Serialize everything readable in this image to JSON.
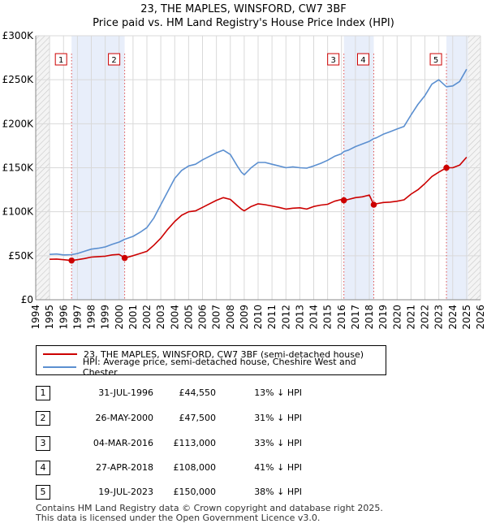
{
  "chart_data": {
    "type": "line",
    "title": "23, THE MAPLES, WINSFORD, CW7 3BF",
    "subtitle": "Price paid vs. HM Land Registry's House Price Index (HPI)",
    "xlim": [
      1994,
      2026
    ],
    "ylim": [
      0,
      300000
    ],
    "x_ticks": [
      "1994",
      "1995",
      "1996",
      "1997",
      "1998",
      "1999",
      "2000",
      "2001",
      "2002",
      "2003",
      "2004",
      "2005",
      "2006",
      "2007",
      "2008",
      "2009",
      "2010",
      "2011",
      "2012",
      "2013",
      "2014",
      "2015",
      "2016",
      "2017",
      "2018",
      "2019",
      "2020",
      "2021",
      "2022",
      "2023",
      "2024",
      "2025",
      "2026"
    ],
    "y_ticks": [
      {
        "value": 0,
        "label": "£0"
      },
      {
        "value": 50000,
        "label": "£50K"
      },
      {
        "value": 100000,
        "label": "£100K"
      },
      {
        "value": 150000,
        "label": "£150K"
      },
      {
        "value": 200000,
        "label": "£200K"
      },
      {
        "value": 250000,
        "label": "£250K"
      },
      {
        "value": 300000,
        "label": "£300K"
      }
    ],
    "series": [
      {
        "name": "23, THE MAPLES, WINSFORD, CW7 3BF (semi-detached house)",
        "color": "#cc0000",
        "points": [
          [
            1995.0,
            46000
          ],
          [
            1995.5,
            46200
          ],
          [
            1996.0,
            45500
          ],
          [
            1996.58,
            44550
          ],
          [
            1997.0,
            45500
          ],
          [
            1997.5,
            46800
          ],
          [
            1998.0,
            48500
          ],
          [
            1998.5,
            49000
          ],
          [
            1999.0,
            49500
          ],
          [
            1999.5,
            51000
          ],
          [
            2000.0,
            51500
          ],
          [
            2000.4,
            47500
          ],
          [
            2000.5,
            47800
          ],
          [
            2001.0,
            50000
          ],
          [
            2001.5,
            52500
          ],
          [
            2002.0,
            55000
          ],
          [
            2002.5,
            62000
          ],
          [
            2003.0,
            70000
          ],
          [
            2003.5,
            80000
          ],
          [
            2004.0,
            89000
          ],
          [
            2004.5,
            96000
          ],
          [
            2005.0,
            100000
          ],
          [
            2005.5,
            101000
          ],
          [
            2006.0,
            105000
          ],
          [
            2006.5,
            109000
          ],
          [
            2007.0,
            113000
          ],
          [
            2007.5,
            116000
          ],
          [
            2008.0,
            114000
          ],
          [
            2008.5,
            107000
          ],
          [
            2008.8,
            103000
          ],
          [
            2009.0,
            101000
          ],
          [
            2009.5,
            106000
          ],
          [
            2010.0,
            109000
          ],
          [
            2010.5,
            108000
          ],
          [
            2011.0,
            106500
          ],
          [
            2011.5,
            105000
          ],
          [
            2012.0,
            103000
          ],
          [
            2012.5,
            104000
          ],
          [
            2013.0,
            104500
          ],
          [
            2013.5,
            103000
          ],
          [
            2014.0,
            106000
          ],
          [
            2014.5,
            107500
          ],
          [
            2015.0,
            108500
          ],
          [
            2015.5,
            112000
          ],
          [
            2016.0,
            114000
          ],
          [
            2016.17,
            113000
          ],
          [
            2016.5,
            114000
          ],
          [
            2017.0,
            116000
          ],
          [
            2017.5,
            117000
          ],
          [
            2018.0,
            119000
          ],
          [
            2018.32,
            108000
          ],
          [
            2018.5,
            109000
          ],
          [
            2019.0,
            110500
          ],
          [
            2019.5,
            111000
          ],
          [
            2020.0,
            112000
          ],
          [
            2020.5,
            113500
          ],
          [
            2021.0,
            120000
          ],
          [
            2021.5,
            125000
          ],
          [
            2022.0,
            132000
          ],
          [
            2022.5,
            140000
          ],
          [
            2023.0,
            145000
          ],
          [
            2023.55,
            150000
          ],
          [
            2024.0,
            150000
          ],
          [
            2024.5,
            153000
          ],
          [
            2025.0,
            162000
          ]
        ]
      },
      {
        "name": "HPI: Average price, semi-detached house, Cheshire West and Chester",
        "color": "#5b8fd0",
        "points": [
          [
            1995.0,
            51500
          ],
          [
            1995.5,
            52000
          ],
          [
            1996.0,
            51000
          ],
          [
            1996.58,
            51200
          ],
          [
            1997.0,
            52500
          ],
          [
            1997.5,
            55000
          ],
          [
            1998.0,
            57500
          ],
          [
            1998.5,
            58500
          ],
          [
            1999.0,
            60000
          ],
          [
            1999.5,
            63000
          ],
          [
            2000.0,
            65500
          ],
          [
            2000.4,
            68700
          ],
          [
            2001.0,
            72000
          ],
          [
            2001.5,
            76500
          ],
          [
            2002.0,
            82000
          ],
          [
            2002.5,
            93000
          ],
          [
            2003.0,
            108000
          ],
          [
            2003.5,
            123000
          ],
          [
            2004.0,
            138000
          ],
          [
            2004.5,
            147000
          ],
          [
            2005.0,
            152000
          ],
          [
            2005.5,
            154000
          ],
          [
            2006.0,
            159000
          ],
          [
            2006.5,
            163000
          ],
          [
            2007.0,
            167000
          ],
          [
            2007.5,
            170000
          ],
          [
            2008.0,
            165000
          ],
          [
            2008.5,
            152000
          ],
          [
            2008.8,
            145000
          ],
          [
            2009.0,
            142000
          ],
          [
            2009.5,
            150000
          ],
          [
            2010.0,
            156000
          ],
          [
            2010.5,
            156000
          ],
          [
            2011.0,
            154000
          ],
          [
            2011.5,
            152000
          ],
          [
            2012.0,
            150000
          ],
          [
            2012.5,
            151000
          ],
          [
            2013.0,
            150000
          ],
          [
            2013.5,
            149500
          ],
          [
            2014.0,
            152000
          ],
          [
            2014.5,
            155000
          ],
          [
            2015.0,
            158500
          ],
          [
            2015.5,
            163000
          ],
          [
            2016.0,
            166000
          ],
          [
            2016.17,
            168500
          ],
          [
            2016.5,
            170000
          ],
          [
            2017.0,
            174000
          ],
          [
            2017.5,
            177000
          ],
          [
            2018.0,
            180000
          ],
          [
            2018.32,
            183100
          ],
          [
            2018.5,
            184000
          ],
          [
            2019.0,
            188000
          ],
          [
            2019.5,
            191000
          ],
          [
            2020.0,
            194000
          ],
          [
            2020.5,
            197000
          ],
          [
            2021.0,
            210000
          ],
          [
            2021.5,
            222000
          ],
          [
            2022.0,
            232000
          ],
          [
            2022.5,
            245000
          ],
          [
            2023.0,
            250000
          ],
          [
            2023.55,
            242000
          ],
          [
            2024.0,
            243000
          ],
          [
            2024.5,
            248000
          ],
          [
            2025.0,
            262000
          ]
        ]
      }
    ],
    "sales": [
      {
        "label": "1",
        "x": 1996.58,
        "price": 44550
      },
      {
        "label": "2",
        "x": 2000.4,
        "price": 47500
      },
      {
        "label": "3",
        "x": 2016.17,
        "price": 113000
      },
      {
        "label": "4",
        "x": 2018.32,
        "price": 108000
      },
      {
        "label": "5",
        "x": 2023.55,
        "price": 150000
      }
    ],
    "shaded_spans": [
      [
        1996.58,
        2000.4
      ],
      [
        2016.17,
        2018.32
      ],
      [
        2023.55,
        2025.1
      ]
    ],
    "hatched_before": 1995,
    "hatched_after": 2025.1
  },
  "legend": {
    "property_label": "23, THE MAPLES, WINSFORD, CW7 3BF (semi-detached house)",
    "hpi_label": "HPI: Average price, semi-detached house, Cheshire West and Chester"
  },
  "transactions": [
    {
      "num": "1",
      "date": "31-JUL-1996",
      "price": "£44,550",
      "hpi": "13% ↓ HPI"
    },
    {
      "num": "2",
      "date": "26-MAY-2000",
      "price": "£47,500",
      "hpi": "31% ↓ HPI"
    },
    {
      "num": "3",
      "date": "04-MAR-2016",
      "price": "£113,000",
      "hpi": "33% ↓ HPI"
    },
    {
      "num": "4",
      "date": "27-APR-2018",
      "price": "£108,000",
      "hpi": "41% ↓ HPI"
    },
    {
      "num": "5",
      "date": "19-JUL-2023",
      "price": "£150,000",
      "hpi": "38% ↓ HPI"
    }
  ],
  "footer": {
    "line1": "Contains HM Land Registry data © Crown copyright and database right 2025.",
    "line2": "This data is licensed under the Open Government Licence v3.0."
  },
  "colors": {
    "property": "#cc0000",
    "hpi": "#5b8fd0",
    "shade": "#e8eefa",
    "grid": "#d9d9d9"
  }
}
